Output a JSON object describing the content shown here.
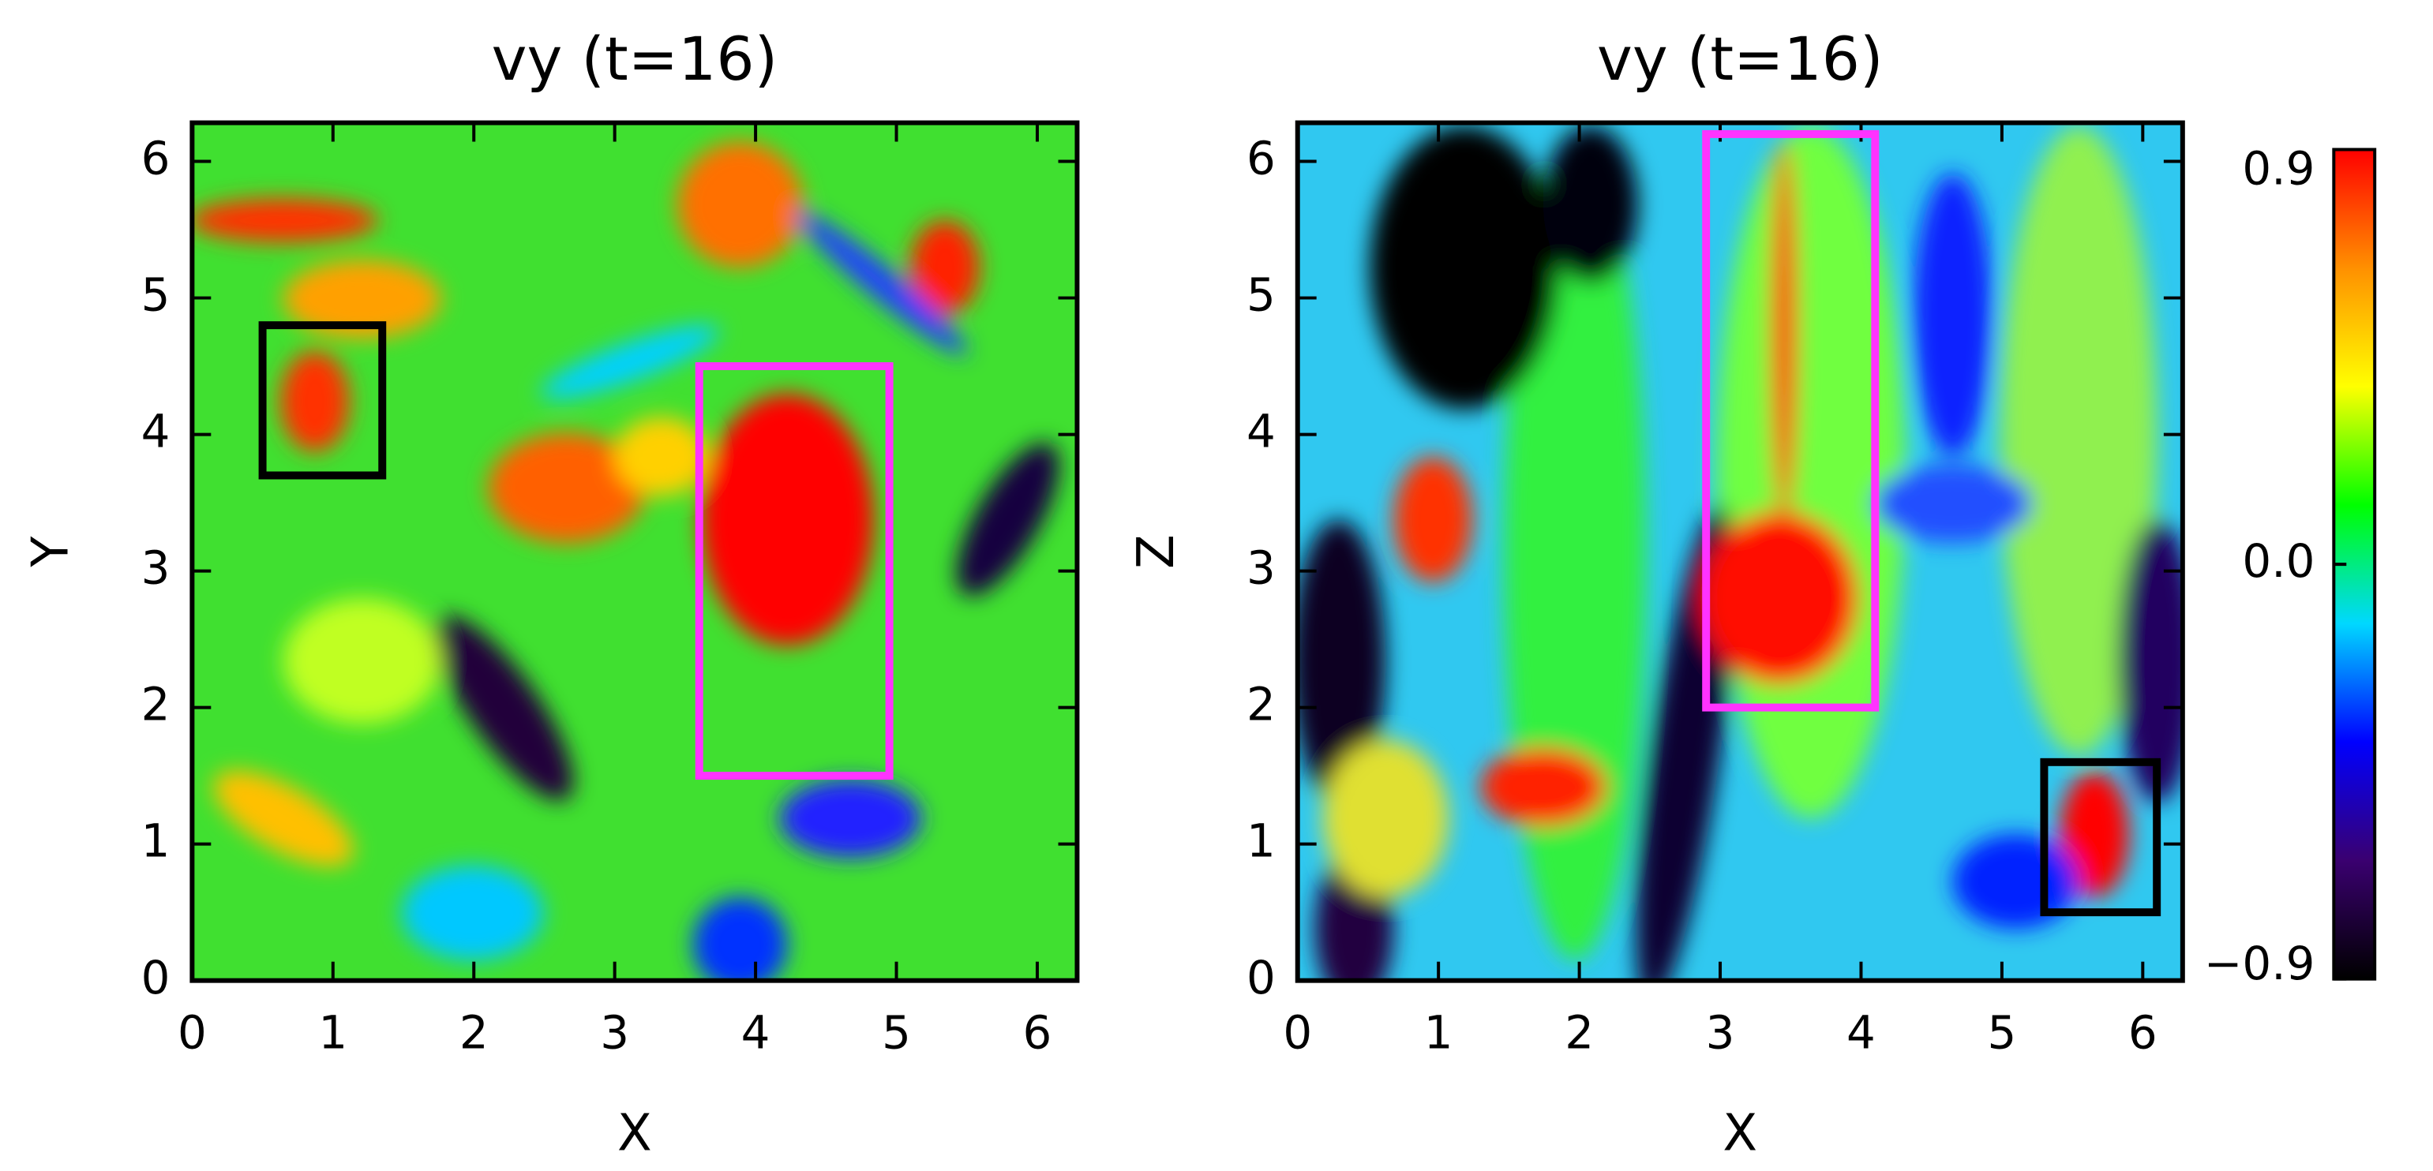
{
  "chart_data": [
    {
      "type": "heatmap",
      "title": "vy (t=16)",
      "x_label": "X",
      "y_label": "Y",
      "xlim": [
        0,
        6.283
      ],
      "ylim": [
        0,
        6.283
      ],
      "xticks": [
        0,
        1,
        2,
        3,
        4,
        5,
        6
      ],
      "yticks": [
        0,
        1,
        2,
        3,
        4,
        5,
        6
      ],
      "boxes": [
        {
          "color": "#000000",
          "x": [
            0.5,
            1.35
          ],
          "y": [
            3.7,
            4.8
          ]
        },
        {
          "color": "#ff33ff",
          "x": [
            3.6,
            4.95
          ],
          "y": [
            1.5,
            4.5
          ]
        }
      ]
    },
    {
      "type": "heatmap",
      "title": "vy (t=16)",
      "x_label": "X",
      "y_label": "Z",
      "xlim": [
        0,
        6.283
      ],
      "ylim": [
        0,
        6.283
      ],
      "xticks": [
        0,
        1,
        2,
        3,
        4,
        5,
        6
      ],
      "yticks": [
        0,
        1,
        2,
        3,
        4,
        5,
        6
      ],
      "boxes": [
        {
          "color": "#ff33ff",
          "x": [
            2.9,
            4.1
          ],
          "y": [
            2.0,
            6.2
          ]
        },
        {
          "color": "#000000",
          "x": [
            5.3,
            6.1
          ],
          "y": [
            0.5,
            1.6
          ]
        }
      ]
    },
    {
      "type": "colorbar",
      "ylim": [
        -0.9,
        0.9
      ],
      "yticks": [
        {
          "value": -0.9,
          "label": "−0.9"
        },
        {
          "value": 0,
          "label": "0.0"
        },
        0.9
      ],
      "colors": [
        "#000000",
        "#3a0070",
        "#0000ff",
        "#00d8ff",
        "#00ff00",
        "#ffff00",
        "#ff9000",
        "#ff0000"
      ]
    }
  ]
}
